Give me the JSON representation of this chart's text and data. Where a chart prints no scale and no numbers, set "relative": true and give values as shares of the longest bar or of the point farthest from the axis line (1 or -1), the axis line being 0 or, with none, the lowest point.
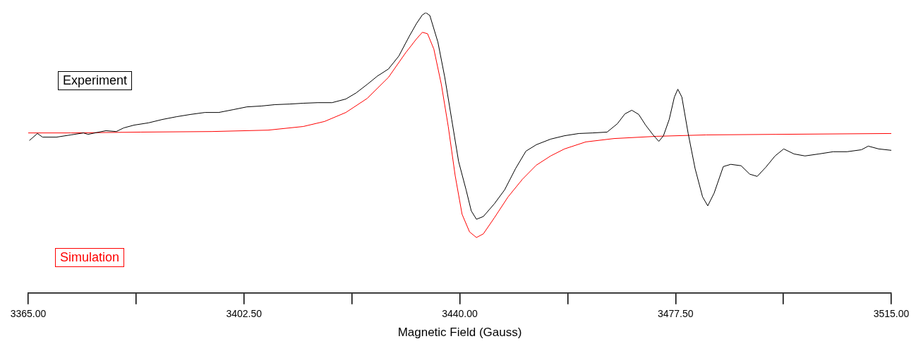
{
  "chart_data": {
    "type": "line",
    "relative": true,
    "xlabel": "Magnetic Field (Gauss)",
    "xlim": [
      3365,
      3515
    ],
    "xticks": [
      {
        "value": 3365,
        "label": "3365.00"
      },
      {
        "value": 3383.75,
        "label": null
      },
      {
        "value": 3402.5,
        "label": "3402.50"
      },
      {
        "value": 3421.25,
        "label": null
      },
      {
        "value": 3440,
        "label": "3440.00"
      },
      {
        "value": 3458.75,
        "label": null
      },
      {
        "value": 3477.5,
        "label": "3477.50"
      },
      {
        "value": 3496.25,
        "label": null
      },
      {
        "value": 3515,
        "label": "3515.00"
      }
    ],
    "grid": false,
    "legend": "left",
    "marker": "none",
    "line_style": "solid",
    "series": [
      {
        "name": "Experiment",
        "color": "#000000",
        "x": [
          3365.2,
          3366.6,
          3367.5,
          3369.9,
          3372.4,
          3374.6,
          3375.4,
          3378.5,
          3380.3,
          3381.6,
          3383.4,
          3385.9,
          3388.3,
          3390.8,
          3393.2,
          3395.7,
          3398.1,
          3400.6,
          3403.0,
          3405.5,
          3407.9,
          3410.4,
          3412.8,
          3415.3,
          3417.8,
          3420.2,
          3422.0,
          3423.9,
          3425.7,
          3427.6,
          3429.4,
          3431.2,
          3432.5,
          3433.5,
          3434.1,
          3434.8,
          3436.2,
          3437.4,
          3438.6,
          3439.8,
          3441.1,
          3442.0,
          3442.9,
          3444.1,
          3446.0,
          3447.8,
          3449.7,
          3451.5,
          3453.3,
          3455.8,
          3458.2,
          3460.7,
          3463.1,
          3465.6,
          3467.4,
          3468.7,
          3469.9,
          3471.1,
          3472.3,
          3473.6,
          3474.6,
          3475.4,
          3476.4,
          3477.3,
          3477.9,
          3478.6,
          3479.7,
          3480.9,
          3482.2,
          3483.1,
          3484.2,
          3485.8,
          3487.1,
          3488.9,
          3490.4,
          3491.7,
          3493.2,
          3494.8,
          3496.3,
          3498.1,
          3500.0,
          3502.4,
          3504.9,
          3507.3,
          3509.8,
          3511.0,
          3512.8,
          3515.0
        ],
        "values": [
          0.544,
          0.569,
          0.556,
          0.556,
          0.564,
          0.571,
          0.566,
          0.579,
          0.576,
          0.589,
          0.599,
          0.607,
          0.619,
          0.629,
          0.637,
          0.644,
          0.644,
          0.654,
          0.664,
          0.667,
          0.672,
          0.674,
          0.677,
          0.679,
          0.679,
          0.692,
          0.714,
          0.744,
          0.774,
          0.799,
          0.845,
          0.915,
          0.962,
          0.992,
          1.0,
          0.99,
          0.895,
          0.769,
          0.619,
          0.469,
          0.368,
          0.293,
          0.263,
          0.273,
          0.318,
          0.368,
          0.444,
          0.506,
          0.529,
          0.549,
          0.561,
          0.569,
          0.571,
          0.574,
          0.604,
          0.639,
          0.652,
          0.637,
          0.599,
          0.564,
          0.541,
          0.561,
          0.619,
          0.699,
          0.727,
          0.699,
          0.569,
          0.444,
          0.343,
          0.311,
          0.356,
          0.451,
          0.459,
          0.454,
          0.424,
          0.416,
          0.449,
          0.489,
          0.514,
          0.496,
          0.489,
          0.496,
          0.504,
          0.504,
          0.511,
          0.524,
          0.514,
          0.509
        ]
      },
      {
        "name": "Simulation",
        "color": "#ff0000",
        "x": [
          3365.0,
          3372.4,
          3384.6,
          3396.9,
          3406.7,
          3412.8,
          3416.5,
          3420.2,
          3423.9,
          3427.6,
          3430.6,
          3432.5,
          3433.5,
          3434.4,
          3435.5,
          3436.8,
          3438.0,
          3439.2,
          3440.4,
          3441.7,
          3442.9,
          3444.1,
          3446.0,
          3448.4,
          3450.9,
          3453.3,
          3455.8,
          3458.2,
          3461.9,
          3466.8,
          3474.2,
          3482.8,
          3495.0,
          3515.0
        ],
        "values": [
          0.571,
          0.571,
          0.574,
          0.576,
          0.581,
          0.594,
          0.612,
          0.644,
          0.694,
          0.769,
          0.857,
          0.907,
          0.93,
          0.925,
          0.87,
          0.744,
          0.594,
          0.419,
          0.281,
          0.218,
          0.198,
          0.211,
          0.268,
          0.343,
          0.406,
          0.456,
          0.489,
          0.514,
          0.539,
          0.551,
          0.559,
          0.564,
          0.566,
          0.569
        ]
      }
    ]
  }
}
